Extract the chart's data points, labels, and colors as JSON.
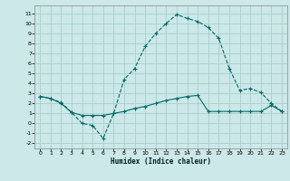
{
  "xlabel": "Humidex (Indice chaleur)",
  "background_color": "#cce8e8",
  "grid_color": "#aacece",
  "line_color": "#006868",
  "xlim": [
    -0.5,
    23.5
  ],
  "ylim": [
    -2.5,
    11.8
  ],
  "x_ticks": [
    0,
    1,
    2,
    3,
    4,
    5,
    6,
    7,
    8,
    9,
    10,
    11,
    12,
    13,
    14,
    15,
    16,
    17,
    18,
    19,
    20,
    21,
    22,
    23
  ],
  "y_ticks": [
    -2,
    -1,
    0,
    1,
    2,
    3,
    4,
    5,
    6,
    7,
    8,
    9,
    10,
    11
  ],
  "line1_x": [
    0,
    1,
    2,
    3,
    4,
    5,
    6,
    7,
    8,
    9,
    10,
    11,
    12,
    13,
    14,
    15,
    16,
    17,
    18,
    19,
    20,
    21,
    22,
    23
  ],
  "line1_y": [
    2.7,
    2.5,
    2.1,
    1.1,
    0.0,
    -0.2,
    -1.5,
    1.0,
    4.4,
    5.5,
    7.7,
    9.0,
    10.0,
    10.9,
    10.5,
    10.2,
    9.6,
    8.5,
    5.5,
    3.3,
    3.5,
    3.1,
    2.0,
    1.2
  ],
  "line2_x": [
    0,
    1,
    2,
    3,
    4,
    5,
    6,
    7,
    8,
    9,
    10,
    11,
    12,
    13,
    14,
    15,
    16,
    17,
    18,
    19,
    20,
    21,
    22,
    23
  ],
  "line2_y": [
    2.7,
    2.5,
    2.0,
    1.1,
    0.8,
    0.8,
    0.8,
    1.0,
    1.2,
    1.5,
    1.7,
    2.0,
    2.3,
    2.5,
    2.7,
    2.8,
    1.2,
    1.2,
    1.2,
    1.2,
    1.2,
    1.2,
    1.8,
    1.2
  ]
}
